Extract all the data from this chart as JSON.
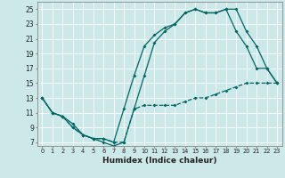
{
  "xlabel": "Humidex (Indice chaleur)",
  "background_color": "#cce8e8",
  "grid_color": "#ffffff",
  "line_color": "#006666",
  "xlim": [
    -0.5,
    23.5
  ],
  "ylim": [
    6.5,
    26.0
  ],
  "xticks": [
    0,
    1,
    2,
    3,
    4,
    5,
    6,
    7,
    8,
    9,
    10,
    11,
    12,
    13,
    14,
    15,
    16,
    17,
    18,
    19,
    20,
    21,
    22,
    23
  ],
  "yticks": [
    7,
    9,
    11,
    13,
    15,
    17,
    19,
    21,
    23,
    25
  ],
  "line1_x": [
    0,
    1,
    2,
    3,
    4,
    5,
    6,
    7,
    8,
    9,
    10,
    11,
    12,
    13,
    14,
    15,
    16,
    17,
    18,
    19,
    20,
    21,
    22,
    23
  ],
  "line1_y": [
    13,
    11,
    10.5,
    9,
    8,
    7.5,
    7.5,
    7,
    7,
    11.5,
    12,
    12,
    12,
    12,
    12.5,
    13,
    13,
    13.5,
    14,
    14.5,
    15,
    15,
    15,
    15
  ],
  "line2_x": [
    0,
    1,
    2,
    3,
    4,
    5,
    6,
    7,
    8,
    9,
    10,
    11,
    12,
    13,
    14,
    15,
    16,
    17,
    18,
    19,
    20,
    21,
    22,
    23
  ],
  "line2_y": [
    13,
    11,
    10.5,
    9,
    8,
    7.5,
    7,
    6.5,
    7,
    11.5,
    16,
    20.5,
    22,
    23,
    24.5,
    25,
    24.5,
    24.5,
    25,
    25,
    22,
    20,
    17,
    15
  ],
  "line3_x": [
    0,
    1,
    2,
    3,
    4,
    5,
    6,
    7,
    8,
    9,
    10,
    11,
    12,
    13,
    14,
    15,
    16,
    17,
    18,
    19,
    20,
    21,
    22,
    23
  ],
  "line3_y": [
    13,
    11,
    10.5,
    9.5,
    8,
    7.5,
    7.5,
    7,
    11.5,
    16,
    20,
    21.5,
    22.5,
    23,
    24.5,
    25,
    24.5,
    24.5,
    25,
    22,
    20,
    17,
    17,
    15
  ]
}
